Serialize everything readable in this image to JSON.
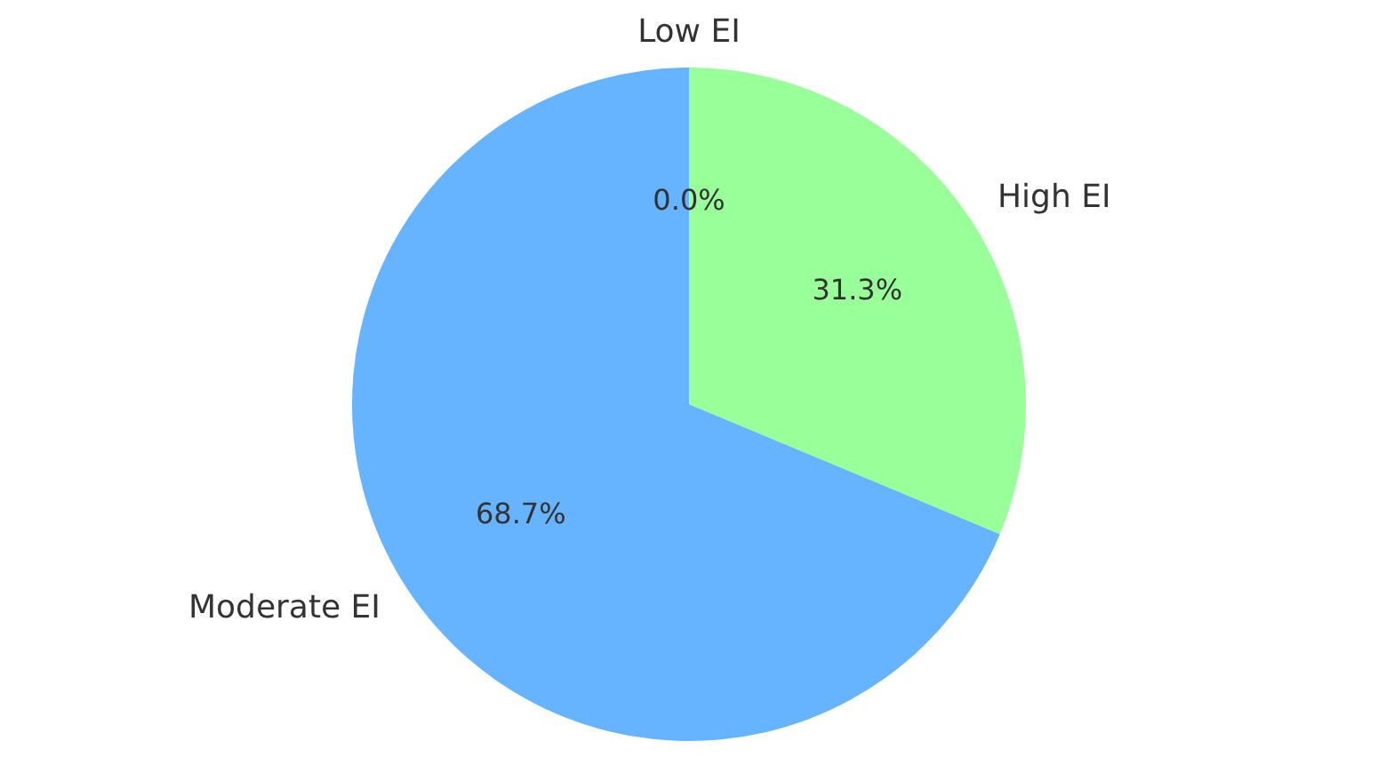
{
  "chart_data": {
    "type": "pie",
    "categories": [
      "Low EI",
      "High EI",
      "Moderate EI"
    ],
    "values": [
      0.0,
      31.3,
      68.7
    ],
    "value_labels": [
      "0.0%",
      "31.3%",
      "68.7%"
    ],
    "colors": [
      "#ff9999",
      "#99ff99",
      "#66b3ff"
    ],
    "legend": false
  }
}
